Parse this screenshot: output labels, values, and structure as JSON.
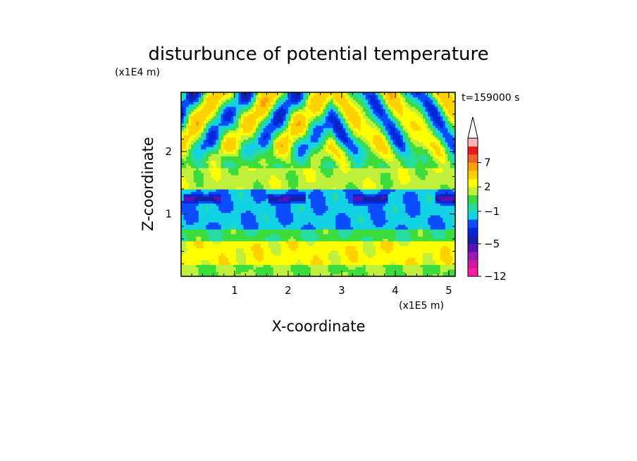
{
  "chart_data": {
    "type": "heatmap",
    "title": "disturbunce of potential temperature",
    "xlabel": "X-coordinate",
    "ylabel": "Z-coordinate",
    "x_unit": "(x1E5 m)",
    "y_unit": "(x1E4 m)",
    "time_label": "t=159000 s",
    "xlim": [
      0,
      5.12
    ],
    "ylim": [
      0,
      2.95
    ],
    "x_ticks": [
      "1",
      "2",
      "3",
      "4",
      "5"
    ],
    "y_ticks": [
      "1",
      "2"
    ],
    "colorbar": {
      "tick_labels": [
        "7",
        "2",
        "−1",
        "−5",
        "−12"
      ],
      "levels_min_to_max": [
        -12,
        -10,
        -8,
        -6,
        -5,
        -4,
        -3,
        -2,
        -1,
        0,
        1,
        2,
        3,
        5,
        7,
        9,
        11
      ],
      "colors_min_to_max": [
        "#ff1aa8",
        "#d21aa0",
        "#9a1ab4",
        "#5a10b4",
        "#1420a8",
        "#0028d8",
        "#0a4cff",
        "#14d2e6",
        "#28dca0",
        "#3cdc3c",
        "#bef03c",
        "#ffff00",
        "#ffd200",
        "#ffa000",
        "#f06428",
        "#e61e1e",
        "#ffb4b4"
      ],
      "extend_max": true
    },
    "field_description": {
      "layers_z": [
        {
          "z": [
            0.0,
            0.2
          ],
          "mean": 1.0
        },
        {
          "z": [
            0.2,
            0.55
          ],
          "mean": 2.5
        },
        {
          "z": [
            0.55,
            0.75
          ],
          "mean": 0.2
        },
        {
          "z": [
            0.75,
            1.4
          ],
          "mean": -1.8
        },
        {
          "z": [
            1.4,
            1.75
          ],
          "mean": 1.5
        },
        {
          "z": [
            1.75,
            2.95
          ],
          "mean": 0.5
        }
      ],
      "wave_source_x": 2.8,
      "colors_note": "gravity-wave beams radiating upward from about x=2.8 above z=1.5"
    }
  }
}
